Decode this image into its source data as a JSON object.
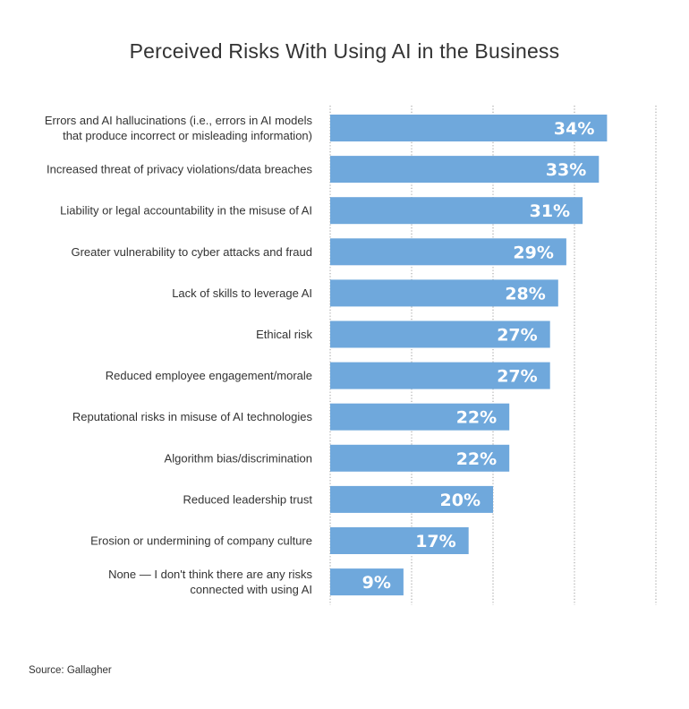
{
  "chart_data": {
    "type": "bar",
    "orientation": "horizontal",
    "title": "Perceived Risks With Using AI in the Business",
    "categories": [
      [
        "Errors and AI hallucinations (i.e., errors in AI models",
        "that produce incorrect or misleading information)"
      ],
      [
        "Increased threat of privacy violations/data breaches"
      ],
      [
        "Liability or legal accountability in the misuse of AI"
      ],
      [
        "Greater vulnerability to cyber attacks and fraud"
      ],
      [
        "Lack of skills to leverage AI"
      ],
      [
        "Ethical risk"
      ],
      [
        "Reduced employee engagement/morale"
      ],
      [
        "Reputational risks in misuse of AI technologies"
      ],
      [
        "Algorithm bias/discrimination"
      ],
      [
        "Reduced leadership trust"
      ],
      [
        "Erosion or undermining of company culture"
      ],
      [
        "None — I don't think there are any risks",
        "connected with using AI"
      ]
    ],
    "values": [
      34,
      33,
      31,
      29,
      28,
      27,
      27,
      22,
      22,
      20,
      17,
      9
    ],
    "value_labels": [
      "34%",
      "33%",
      "31%",
      "29%",
      "28%",
      "27%",
      "27%",
      "22%",
      "22%",
      "20%",
      "17%",
      "9%"
    ],
    "xlim": [
      0,
      40
    ],
    "gridlines": [
      0,
      10,
      20,
      30,
      40
    ],
    "grid": true,
    "bar_color": "#6fa8dc",
    "value_label_color": "#ffffff"
  },
  "source": "Source: Gallagher"
}
